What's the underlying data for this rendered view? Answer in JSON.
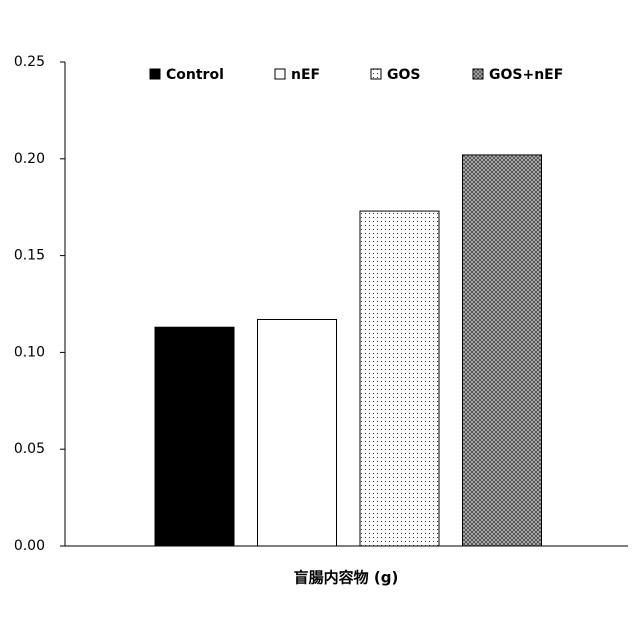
{
  "chart_data": {
    "type": "bar",
    "x_label": "盲腸内容物 (g)",
    "series": [
      {
        "name": "Control",
        "color": "#000000",
        "pattern": "solid",
        "values": [
          0.113
        ]
      },
      {
        "name": "nEF",
        "color": "#ffffff",
        "pattern": "solid",
        "values": [
          0.117
        ]
      },
      {
        "name": "GOS",
        "color": "#ffffff",
        "pattern": "dots",
        "values": [
          0.173
        ]
      },
      {
        "name": "GOS+nEF",
        "color": "#ffffff",
        "pattern": "crosshatch",
        "values": [
          0.202
        ]
      }
    ],
    "ylim": [
      0,
      0.25
    ],
    "yticks": [
      {
        "value": 0,
        "label": "0.00"
      },
      0.05,
      {
        "value": 0.1,
        "label": "0.10"
      },
      0.15,
      {
        "value": 0.2,
        "label": "0.20"
      },
      0.25
    ],
    "grid": false,
    "legend": "top"
  }
}
